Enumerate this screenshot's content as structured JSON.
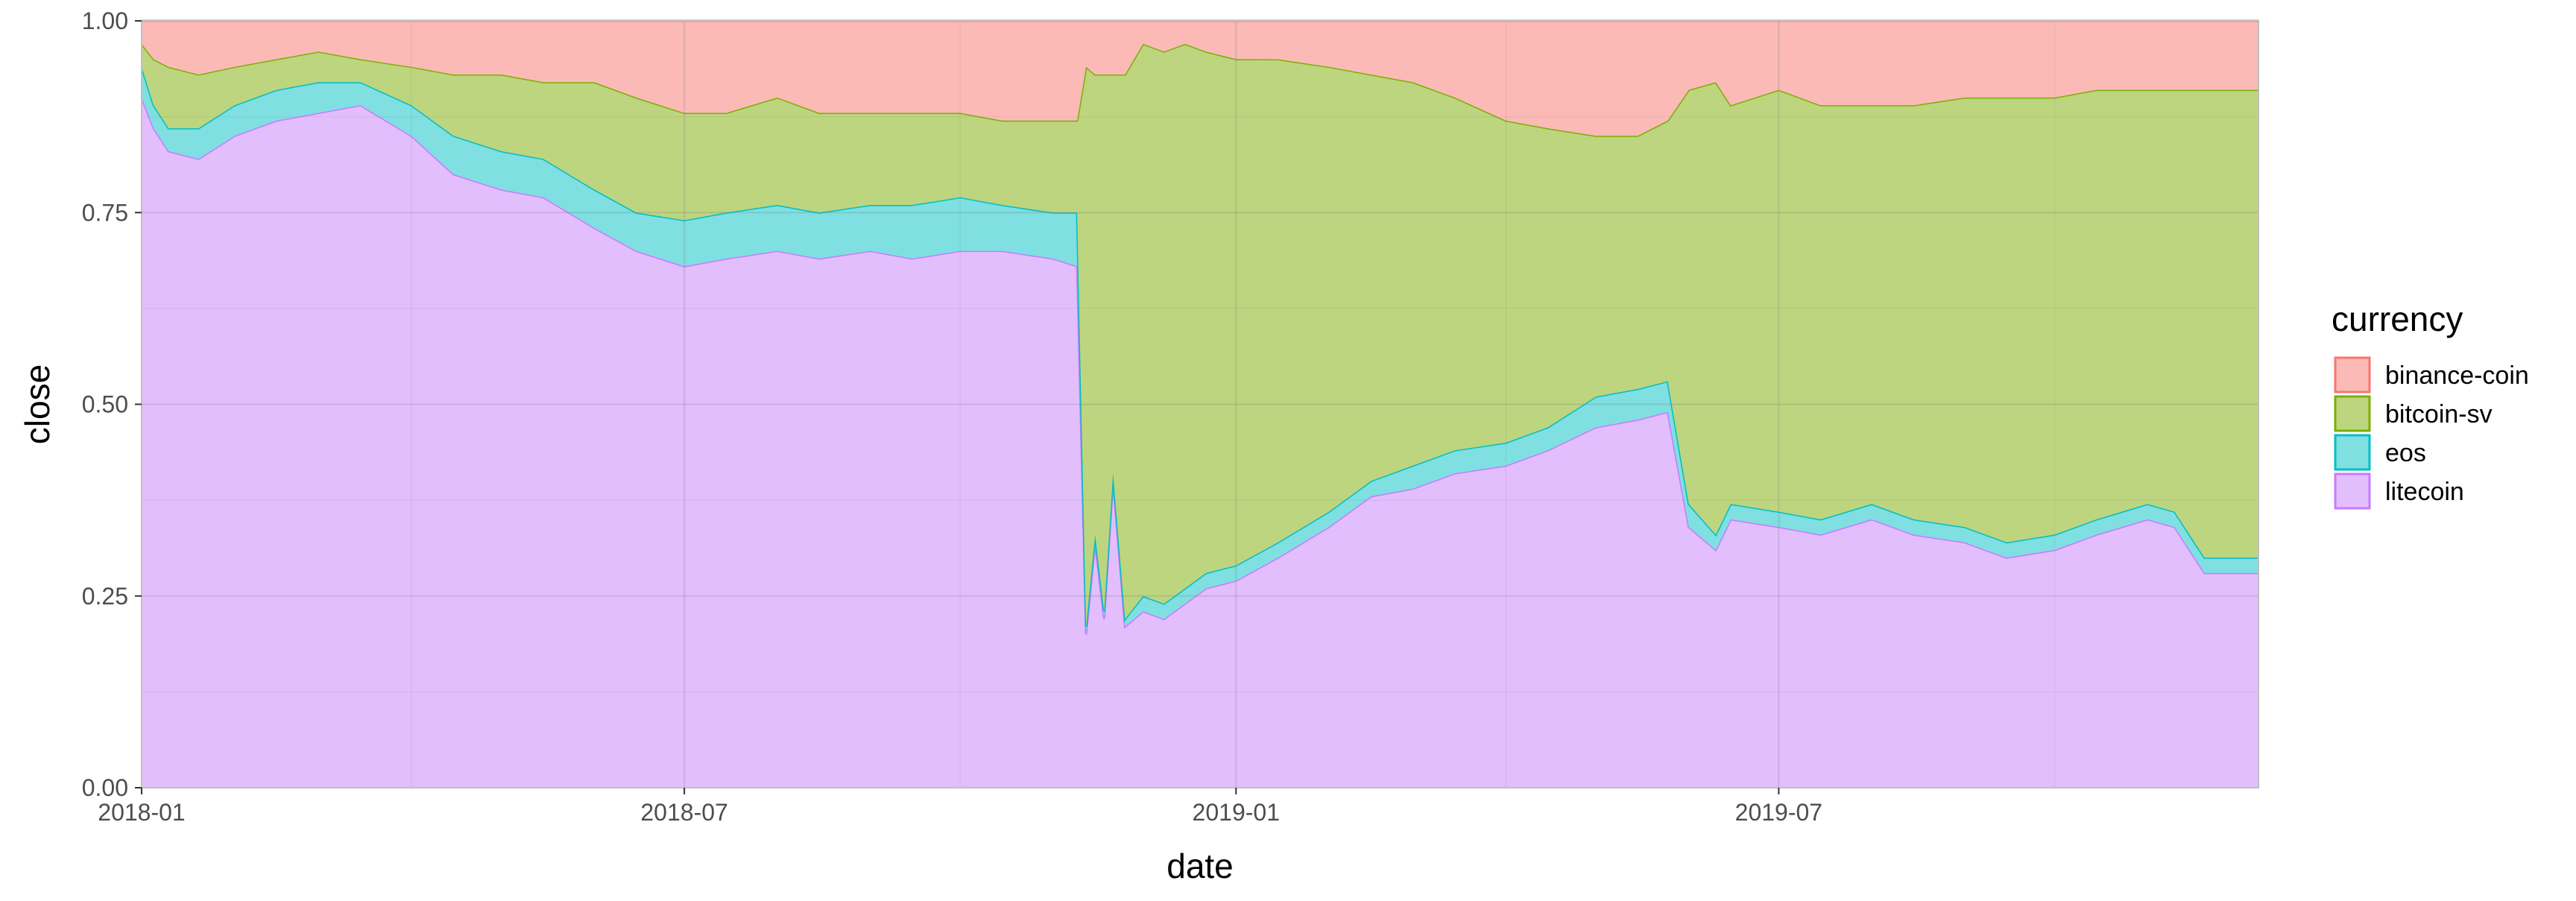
{
  "chart_data": {
    "type": "area",
    "stacked": "fill",
    "xlabel": "date",
    "ylabel": "close",
    "ylim": [
      0,
      1
    ],
    "xlim": [
      "2018-01-01",
      "2019-12-08"
    ],
    "grid": true,
    "legend_position": "right",
    "legend_title": "currency",
    "x_ticks": [
      {
        "date": "2018-01-01",
        "label": "2018-01"
      },
      {
        "date": "2018-07-01",
        "label": "2018-07"
      },
      {
        "date": "2019-01-01",
        "label": "2019-01"
      },
      {
        "date": "2019-07-01",
        "label": "2019-07"
      }
    ],
    "y_ticks": [
      {
        "value": 0,
        "label": "0.00"
      },
      {
        "value": 0.25,
        "label": "0.25"
      },
      {
        "value": 0.5,
        "label": "0.50"
      },
      {
        "value": 0.75,
        "label": "0.75"
      },
      {
        "value": 1,
        "label": "1.00"
      }
    ],
    "stack_order": [
      "binance-coin",
      "bitcoin-sv",
      "eos",
      "litecoin"
    ],
    "x": [
      "2018-01-01",
      "2018-01-05",
      "2018-01-10",
      "2018-01-20",
      "2018-02-01",
      "2018-02-15",
      "2018-03-01",
      "2018-03-15",
      "2018-04-01",
      "2018-04-15",
      "2018-05-01",
      "2018-05-15",
      "2018-06-01",
      "2018-06-15",
      "2018-07-01",
      "2018-07-15",
      "2018-08-01",
      "2018-08-15",
      "2018-09-01",
      "2018-09-15",
      "2018-10-01",
      "2018-10-15",
      "2018-11-01",
      "2018-11-09",
      "2018-11-12",
      "2018-11-15",
      "2018-11-18",
      "2018-11-21",
      "2018-11-25",
      "2018-12-01",
      "2018-12-08",
      "2018-12-15",
      "2018-12-22",
      "2019-01-01",
      "2019-01-15",
      "2019-02-01",
      "2019-02-15",
      "2019-03-01",
      "2019-03-15",
      "2019-04-01",
      "2019-04-15",
      "2019-05-01",
      "2019-05-15",
      "2019-05-25",
      "2019-06-01",
      "2019-06-10",
      "2019-06-15",
      "2019-07-01",
      "2019-07-15",
      "2019-08-01",
      "2019-08-15",
      "2019-09-01",
      "2019-09-15",
      "2019-10-01",
      "2019-10-15",
      "2019-11-01",
      "2019-11-10",
      "2019-11-20",
      "2019-12-01",
      "2019-12-08"
    ],
    "series": [
      {
        "name": "litecoin",
        "color": "#C77CFF",
        "fill": "#E3BEFD",
        "values": [
          0.9,
          0.86,
          0.83,
          0.82,
          0.85,
          0.87,
          0.88,
          0.89,
          0.85,
          0.8,
          0.78,
          0.77,
          0.73,
          0.7,
          0.68,
          0.69,
          0.7,
          0.69,
          0.7,
          0.69,
          0.7,
          0.7,
          0.69,
          0.68,
          0.2,
          0.32,
          0.22,
          0.4,
          0.21,
          0.23,
          0.22,
          0.24,
          0.26,
          0.27,
          0.3,
          0.34,
          0.38,
          0.39,
          0.41,
          0.42,
          0.44,
          0.47,
          0.48,
          0.49,
          0.34,
          0.31,
          0.35,
          0.34,
          0.33,
          0.35,
          0.33,
          0.32,
          0.3,
          0.31,
          0.33,
          0.35,
          0.34,
          0.28,
          0.28,
          0.28
        ]
      },
      {
        "name": "eos",
        "color": "#00BFC4",
        "fill": "#7FDFE1",
        "values": [
          0.04,
          0.03,
          0.03,
          0.04,
          0.04,
          0.04,
          0.04,
          0.03,
          0.04,
          0.05,
          0.05,
          0.05,
          0.05,
          0.05,
          0.06,
          0.06,
          0.06,
          0.06,
          0.06,
          0.07,
          0.07,
          0.06,
          0.06,
          0.07,
          0.01,
          0.01,
          0.01,
          0.01,
          0.01,
          0.02,
          0.02,
          0.02,
          0.02,
          0.02,
          0.02,
          0.02,
          0.02,
          0.03,
          0.03,
          0.03,
          0.03,
          0.04,
          0.04,
          0.04,
          0.03,
          0.02,
          0.02,
          0.02,
          0.02,
          0.02,
          0.02,
          0.02,
          0.02,
          0.02,
          0.02,
          0.02,
          0.02,
          0.02,
          0.02,
          0.02
        ]
      },
      {
        "name": "bitcoin-sv",
        "color": "#7CAE00",
        "fill": "#BDD57F",
        "values": [
          0.03,
          0.06,
          0.08,
          0.07,
          0.05,
          0.04,
          0.04,
          0.03,
          0.05,
          0.08,
          0.1,
          0.1,
          0.14,
          0.15,
          0.14,
          0.13,
          0.14,
          0.13,
          0.12,
          0.12,
          0.11,
          0.11,
          0.12,
          0.12,
          0.73,
          0.6,
          0.7,
          0.52,
          0.71,
          0.72,
          0.72,
          0.71,
          0.68,
          0.66,
          0.63,
          0.58,
          0.53,
          0.5,
          0.46,
          0.42,
          0.39,
          0.34,
          0.33,
          0.34,
          0.54,
          0.59,
          0.52,
          0.55,
          0.54,
          0.52,
          0.54,
          0.56,
          0.58,
          0.57,
          0.56,
          0.54,
          0.55,
          0.61,
          0.61,
          0.61
        ]
      },
      {
        "name": "binance-coin",
        "color": "#F8766D",
        "fill": "#FBBAB6",
        "values": [
          0.03,
          0.05,
          0.06,
          0.07,
          0.06,
          0.05,
          0.04,
          0.05,
          0.06,
          0.07,
          0.07,
          0.08,
          0.08,
          0.1,
          0.12,
          0.12,
          0.1,
          0.12,
          0.12,
          0.12,
          0.12,
          0.13,
          0.13,
          0.13,
          0.06,
          0.07,
          0.07,
          0.07,
          0.07,
          0.03,
          0.04,
          0.03,
          0.04,
          0.05,
          0.05,
          0.06,
          0.07,
          0.08,
          0.1,
          0.13,
          0.14,
          0.15,
          0.15,
          0.13,
          0.09,
          0.08,
          0.11,
          0.09,
          0.11,
          0.11,
          0.11,
          0.1,
          0.1,
          0.1,
          0.09,
          0.09,
          0.09,
          0.09,
          0.09,
          0.09
        ]
      }
    ]
  }
}
